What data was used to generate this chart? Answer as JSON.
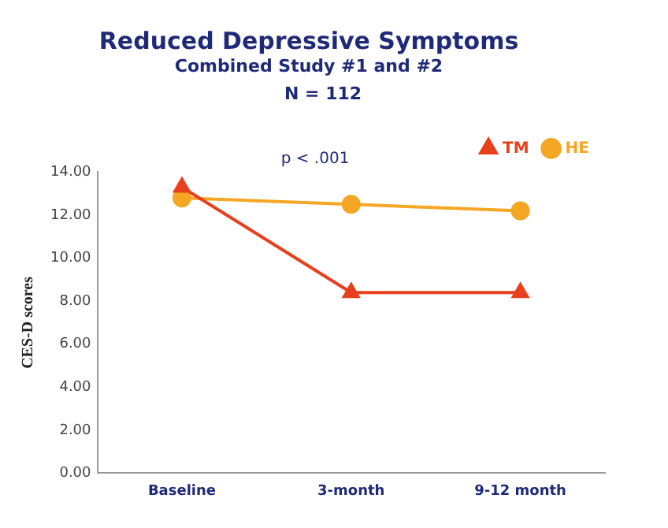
{
  "chart_data": {
    "type": "line",
    "title": "Reduced Depressive Symptoms",
    "subtitle": "Combined Study #1 and #2",
    "annotations": [
      "N = 112",
      "p < .001"
    ],
    "ylabel": "CES-D scores",
    "categories": [
      "Baseline",
      "3-month",
      "9-12 month"
    ],
    "series": [
      {
        "name": "TM",
        "color": "#e8401c",
        "marker": "triangle",
        "values": [
          13.3,
          8.4,
          8.4
        ]
      },
      {
        "name": "HE",
        "color": "#f5a623",
        "marker": "circle",
        "values": [
          12.8,
          12.5,
          12.2
        ]
      }
    ],
    "ylim": [
      0,
      14
    ],
    "yticks": [
      {
        "value": 0,
        "label": "0.00"
      },
      {
        "value": 2,
        "label": "2.00"
      },
      {
        "value": 4,
        "label": "4.00"
      },
      {
        "value": 6,
        "label": "6.00"
      },
      {
        "value": 8,
        "label": "8.00"
      },
      {
        "value": 10,
        "label": "10.00"
      },
      {
        "value": 12,
        "label": "12.00"
      },
      {
        "value": 14,
        "label": "14.00"
      }
    ],
    "grid": false,
    "legend": "top right",
    "line_style": "solid"
  }
}
